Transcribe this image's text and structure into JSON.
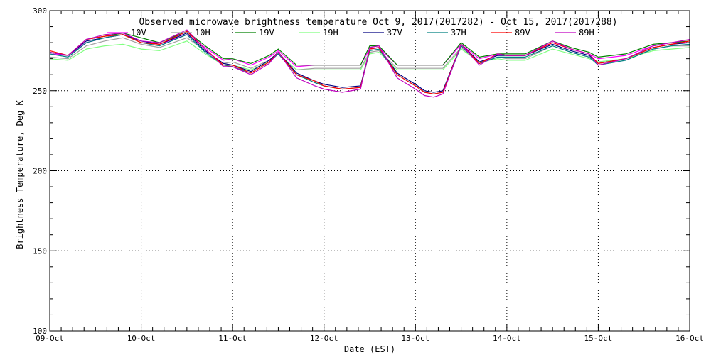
{
  "chart_data": {
    "type": "line",
    "title": "Observed microwave brightness temperature Oct  9, 2017(2017282) - Oct 15, 2017(2017288)",
    "xlabel": "Date (EST)",
    "ylabel": "Brightness Temperature, Deg K",
    "ylim": [
      100,
      300
    ],
    "xlim": [
      "09-Oct",
      "16-Oct"
    ],
    "x_ticks": [
      "09-Oct",
      "10-Oct",
      "11-Oct",
      "12-Oct",
      "13-Oct",
      "14-Oct",
      "15-Oct",
      "16-Oct"
    ],
    "y_ticks": [
      "100",
      "150",
      "200",
      "250",
      "300"
    ],
    "grid": true,
    "legend_position": "top",
    "x_days": [
      0,
      0.2,
      0.4,
      0.6,
      0.8,
      1.0,
      1.2,
      1.5,
      1.7,
      1.9,
      2.0,
      2.2,
      2.4,
      2.5,
      2.7,
      2.9,
      3.0,
      3.2,
      3.4,
      3.5,
      3.6,
      3.8,
      4.0,
      4.1,
      4.2,
      4.3,
      4.5,
      4.7,
      4.9,
      5.0,
      5.2,
      5.5,
      5.7,
      5.9,
      6.0,
      6.3,
      6.6,
      6.8,
      7.0
    ],
    "series": [
      {
        "name": "10V",
        "color": "#ff00ff",
        "values": [
          273,
          272,
          280,
          283,
          285,
          281,
          279,
          285,
          277,
          269,
          270,
          266,
          271,
          275,
          265,
          266,
          266,
          266,
          266,
          276,
          277,
          266,
          266,
          266,
          266,
          266,
          279,
          270,
          273,
          272,
          272,
          280,
          276,
          273,
          270,
          272,
          278,
          280,
          280
        ]
      },
      {
        "name": "10H",
        "color": "#a0a0a0",
        "values": [
          271,
          270,
          278,
          281,
          283,
          279,
          277,
          283,
          275,
          267,
          268,
          264,
          269,
          273,
          263,
          264,
          264,
          264,
          264,
          274,
          275,
          264,
          264,
          264,
          264,
          264,
          277,
          268,
          271,
          270,
          270,
          278,
          274,
          271,
          268,
          270,
          276,
          278,
          278
        ]
      },
      {
        "name": "19V",
        "color": "#008000",
        "values": [
          274,
          272,
          282,
          284,
          286,
          283,
          280,
          287,
          278,
          270,
          270,
          267,
          272,
          276,
          266,
          266,
          266,
          266,
          266,
          278,
          278,
          266,
          266,
          266,
          266,
          266,
          280,
          271,
          273,
          273,
          273,
          281,
          277,
          274,
          271,
          273,
          279,
          280,
          281
        ]
      },
      {
        "name": "19H",
        "color": "#80ff80",
        "values": [
          270,
          269,
          276,
          278,
          279,
          276,
          275,
          281,
          273,
          266,
          266,
          263,
          268,
          273,
          263,
          263,
          263,
          263,
          263,
          273,
          274,
          263,
          263,
          263,
          263,
          263,
          276,
          268,
          270,
          269,
          269,
          276,
          273,
          270,
          268,
          270,
          275,
          276,
          277
        ]
      },
      {
        "name": "37V",
        "color": "#000080",
        "values": [
          274,
          272,
          281,
          283,
          285,
          281,
          279,
          286,
          275,
          267,
          266,
          262,
          269,
          274,
          261,
          256,
          254,
          252,
          253,
          276,
          277,
          261,
          254,
          250,
          249,
          250,
          279,
          268,
          272,
          272,
          272,
          279,
          275,
          272,
          267,
          270,
          277,
          279,
          280
        ]
      },
      {
        "name": "37H",
        "color": "#008080",
        "values": [
          273,
          271,
          280,
          283,
          285,
          280,
          278,
          285,
          274,
          266,
          265,
          261,
          268,
          273,
          260,
          255,
          253,
          251,
          252,
          275,
          276,
          260,
          253,
          249,
          248,
          249,
          278,
          267,
          271,
          271,
          271,
          278,
          274,
          271,
          266,
          269,
          276,
          278,
          279
        ]
      },
      {
        "name": "89V",
        "color": "#ff0000",
        "values": [
          275,
          272,
          282,
          284,
          285,
          280,
          279,
          287,
          276,
          266,
          266,
          261,
          268,
          274,
          260,
          256,
          253,
          251,
          252,
          276,
          277,
          260,
          253,
          249,
          248,
          249,
          279,
          267,
          273,
          272,
          272,
          280,
          276,
          273,
          267,
          270,
          277,
          279,
          281
        ]
      },
      {
        "name": "89H",
        "color": "#c000c0",
        "values": [
          274,
          272,
          282,
          285,
          286,
          281,
          280,
          288,
          276,
          265,
          265,
          260,
          267,
          274,
          258,
          253,
          251,
          249,
          251,
          277,
          278,
          258,
          251,
          247,
          246,
          248,
          279,
          266,
          273,
          272,
          272,
          281,
          276,
          273,
          266,
          270,
          278,
          280,
          282
        ]
      }
    ]
  }
}
